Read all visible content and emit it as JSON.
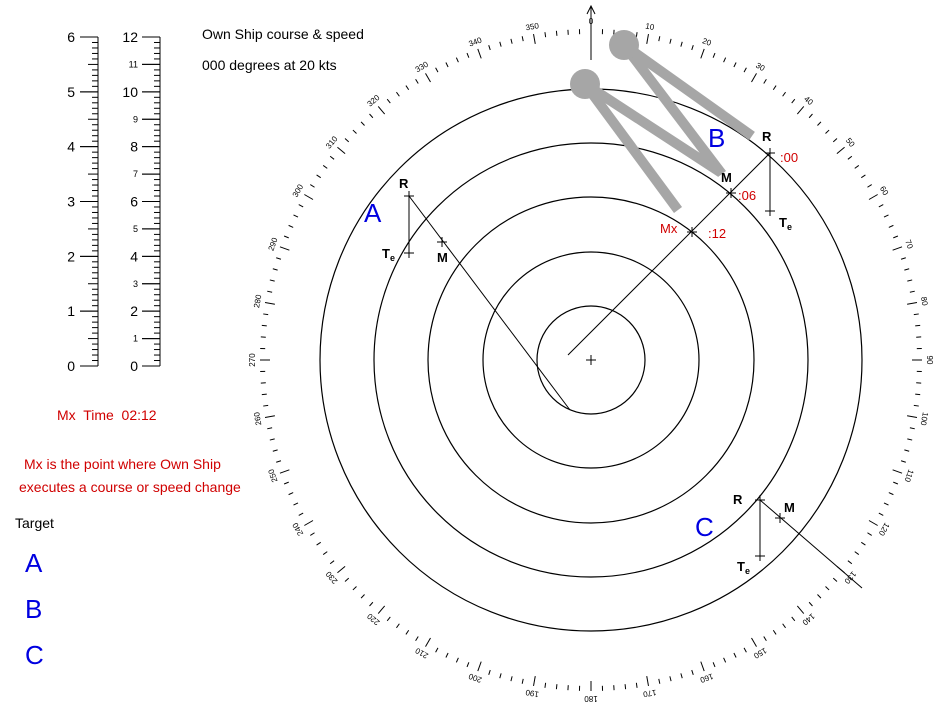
{
  "header": {
    "line1": "Own Ship course & speed",
    "line2": "000 degrees at 20 kts"
  },
  "scales": {
    "left": [
      0,
      1,
      2,
      3,
      4,
      5,
      6
    ],
    "right": [
      0,
      1,
      2,
      3,
      4,
      5,
      6,
      7,
      8,
      9,
      10,
      11,
      12
    ]
  },
  "info": {
    "mx_time": "Mx  Time  02:12",
    "note": [
      "Mx is the point where Own Ship",
      "executes a course or speed change"
    ]
  },
  "targets": {
    "title": "Target",
    "items": [
      "A",
      "B",
      "C"
    ]
  },
  "radar": {
    "bearings": [
      0,
      10,
      20,
      30,
      40,
      50,
      60,
      70,
      80,
      90,
      100,
      110,
      120,
      130,
      140,
      150,
      160,
      170,
      180,
      190,
      200,
      210,
      220,
      230,
      240,
      250,
      260,
      270,
      280,
      290,
      300,
      310,
      320,
      330,
      340,
      350
    ],
    "markers": [
      "A",
      "R",
      "M",
      "B",
      "R",
      "M",
      ":00",
      ":06",
      ":12",
      "Mx",
      "C",
      "R",
      "M"
    ],
    "te": {
      "main": "T",
      "sub": "e"
    }
  }
}
